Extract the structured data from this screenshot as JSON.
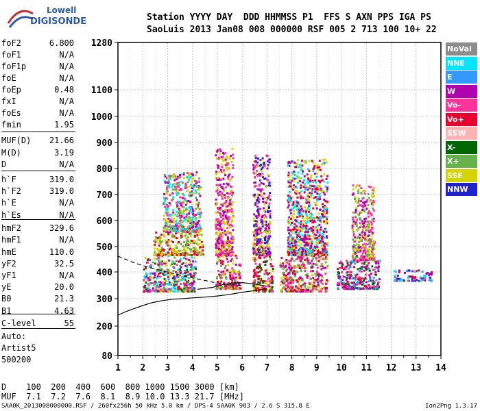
{
  "logo": {
    "line1": "Lowell",
    "line2": "DIGISONDE"
  },
  "header": {
    "line1": "Station YYYY DAY  DDD HHMMSS P1  FFS S AXN PPS IGA PS",
    "line2": "SaoLuis 2013 Jan08 008 000000 RSF 005 2 713 100 10+ 22"
  },
  "params": [
    {
      "label": "foF2",
      "value": "6.800"
    },
    {
      "label": "foF1",
      "value": "N/A"
    },
    {
      "label": "foF1p",
      "value": "N/A"
    },
    {
      "label": "foE",
      "value": "N/A"
    },
    {
      "label": "foEp",
      "value": "0.48"
    },
    {
      "label": "fxI",
      "value": "N/A"
    },
    {
      "label": "foEs",
      "value": "N/A"
    },
    {
      "label": "fmin",
      "value": "1.95"
    },
    {
      "label": "MUF(D)",
      "value": "21.66"
    },
    {
      "label": "M(D)",
      "value": "3.19"
    },
    {
      "label": "D",
      "value": "N/A"
    },
    {
      "label": "h`F",
      "value": "319.0"
    },
    {
      "label": "h`F2",
      "value": "319.0"
    },
    {
      "label": "h`E",
      "value": "N/A"
    },
    {
      "label": "h`Es",
      "value": "N/A"
    },
    {
      "label": "hmF2",
      "value": "329.6"
    },
    {
      "label": "hmF1",
      "value": "N/A"
    },
    {
      "label": "hmE",
      "value": "110.0"
    },
    {
      "label": "yF2",
      "value": "32.5"
    },
    {
      "label": "yF1",
      "value": "N/A"
    },
    {
      "label": "yE",
      "value": "20.0"
    },
    {
      "label": "B0",
      "value": "21.3"
    },
    {
      "label": "B1",
      "value": "4.63"
    },
    {
      "label": "C-level",
      "value": "55"
    },
    {
      "label": "Auto:",
      "value": ""
    },
    {
      "label": "Artist5",
      "value": ""
    },
    {
      "label": "500200",
      "value": ""
    }
  ],
  "muf_table": {
    "d_label": "D",
    "d_values": [
      "100",
      "200",
      "400",
      "600",
      "800",
      "1000",
      "1500",
      "3000"
    ],
    "d_unit": "[km]",
    "muf_label": "MUF",
    "muf_values": [
      "7.1",
      "7.2",
      "7.6",
      "8.1",
      "8.9",
      "10.0",
      "13.3",
      "21.7"
    ],
    "muf_unit": "[MHz]"
  },
  "footer": "SAA0K_2013008000000.RSF / 260fx256h 50 kHz 5.0 km / DPS-4 SAA0K 903 / 2.6 S 315.8 E",
  "version": "Ion2Png 1.3.17",
  "legend": [
    {
      "label": "NoVal",
      "color": "#8c8c8c"
    },
    {
      "label": "NNE",
      "color": "#00e5ff"
    },
    {
      "label": "E",
      "color": "#3399ff"
    },
    {
      "label": "W",
      "color": "#b000b0"
    },
    {
      "label": "Vo-",
      "color": "#ff3399"
    },
    {
      "label": "Vo+",
      "color": "#e6002e"
    },
    {
      "label": "SSW",
      "color": "#ffb3b3"
    },
    {
      "label": "X-",
      "color": "#006600"
    },
    {
      "label": "X+",
      "color": "#66b24c"
    },
    {
      "label": "SSE",
      "color": "#d4d400"
    },
    {
      "label": "NNW",
      "color": "#2222cc"
    }
  ],
  "chart_data": {
    "type": "scatter",
    "x_ticks": [
      "1",
      "2",
      "3",
      "4",
      "5",
      "6",
      "7",
      "8",
      "9",
      "10",
      "11",
      "12",
      "13",
      "14"
    ],
    "y_ticks": [
      "80",
      "200",
      "300",
      "400",
      "500",
      "600",
      "700",
      "800",
      "900",
      "1000",
      "1100",
      "1280"
    ],
    "xlim": [
      1,
      14
    ],
    "ylim": [
      80,
      1280
    ],
    "grid": true,
    "clusters": [
      {
        "x": [
          2.0,
          4.1
        ],
        "y": [
          330,
          470
        ],
        "colors": [
          "Vo+",
          "Vo-",
          "X-",
          "W",
          "SSE",
          "X+",
          "E",
          "NNE"
        ]
      },
      {
        "x": [
          2.4,
          4.4
        ],
        "y": [
          470,
          560
        ],
        "colors": [
          "SSE",
          "X+",
          "Vo+"
        ]
      },
      {
        "x": [
          2.8,
          4.3
        ],
        "y": [
          560,
          790
        ],
        "colors": [
          "W",
          "Vo-",
          "SSE",
          "X+",
          "NNE"
        ]
      },
      {
        "x": [
          4.9,
          5.9
        ],
        "y": [
          340,
          470
        ],
        "colors": [
          "Vo+",
          "SSE",
          "X+",
          "W",
          "Vo-"
        ]
      },
      {
        "x": [
          4.9,
          5.6
        ],
        "y": [
          470,
          890
        ],
        "colors": [
          "SSE",
          "W",
          "Vo-"
        ]
      },
      {
        "x": [
          6.4,
          7.2
        ],
        "y": [
          330,
          470
        ],
        "colors": [
          "Vo+",
          "Vo-",
          "SSE",
          "X-"
        ]
      },
      {
        "x": [
          6.4,
          7.1
        ],
        "y": [
          470,
          860
        ],
        "colors": [
          "W",
          "SSE",
          "Vo-",
          "NNW"
        ]
      },
      {
        "x": [
          7.5,
          9.4
        ],
        "y": [
          330,
          470
        ],
        "colors": [
          "Vo+",
          "Vo-",
          "SSE",
          "W",
          "X+"
        ]
      },
      {
        "x": [
          7.8,
          9.4
        ],
        "y": [
          470,
          840
        ],
        "colors": [
          "W",
          "Vo+",
          "SSE",
          "NNE"
        ]
      },
      {
        "x": [
          9.8,
          11.5
        ],
        "y": [
          340,
          450
        ],
        "colors": [
          "Vo+",
          "W",
          "Vo-",
          "X-",
          "E"
        ]
      },
      {
        "x": [
          10.4,
          11.3
        ],
        "y": [
          450,
          740
        ],
        "colors": [
          "Vo-",
          "SSE",
          "X+",
          "W"
        ]
      },
      {
        "x": [
          12.1,
          13.6
        ],
        "y": [
          370,
          410
        ],
        "colors": [
          "E",
          "NNE",
          "NNW",
          "W",
          "Vo+"
        ]
      }
    ],
    "lines": [
      {
        "style": "solid",
        "x": [
          1.0,
          1.3,
          1.6,
          2.0,
          2.4,
          2.8,
          3.2,
          3.6,
          4.0,
          4.5,
          5.0,
          5.5,
          6.0,
          6.5,
          7.0
        ],
        "y": [
          240,
          252,
          262,
          275,
          286,
          293,
          298,
          300,
          303,
          306,
          310,
          316,
          324,
          330,
          338
        ]
      },
      {
        "style": "dashed",
        "x": [
          1.0,
          1.3,
          1.6,
          2.0,
          2.4,
          2.8,
          3.2,
          3.6,
          4.0,
          4.4,
          4.8,
          5.2,
          5.6,
          6.0
        ],
        "y": [
          462,
          450,
          438,
          425,
          414,
          404,
          395,
          386,
          378,
          370,
          362,
          356,
          352,
          349
        ]
      },
      {
        "style": "solid",
        "x": [
          4.2,
          4.8,
          5.2,
          5.6,
          6.0,
          6.4,
          6.8,
          7.0
        ],
        "y": [
          335,
          342,
          352,
          358,
          360,
          356,
          350,
          346
        ]
      }
    ]
  }
}
